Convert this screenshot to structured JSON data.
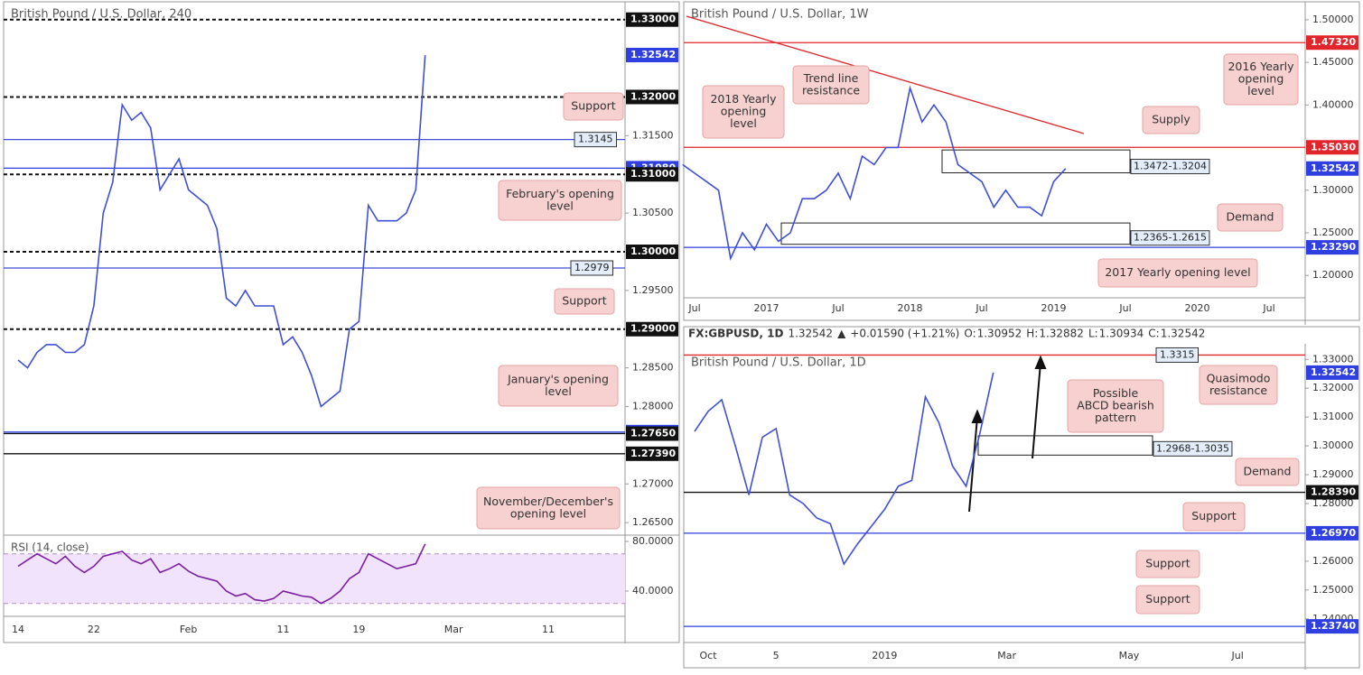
{
  "chart_data": [
    {
      "type": "line",
      "title": "British Pound / U.S. Dollar, 240",
      "categories": [
        "14",
        null,
        null,
        null,
        null,
        null,
        null,
        null,
        "22",
        null,
        null,
        null,
        null,
        null,
        null,
        null,
        null,
        null,
        "Feb",
        null,
        null,
        null,
        null,
        null,
        null,
        null,
        null,
        null,
        "11",
        null,
        null,
        null,
        null,
        null,
        null,
        null,
        "19",
        null,
        null,
        null,
        null,
        null,
        null,
        null,
        null,
        null,
        "Mar",
        null,
        null,
        null,
        null,
        null,
        null,
        null,
        null,
        null,
        "11"
      ],
      "series": [
        {
          "color": "#3f4fd8",
          "values": [
            1.286,
            1.285,
            1.287,
            1.288,
            1.288,
            1.287,
            1.287,
            1.288,
            1.293,
            1.305,
            1.309,
            1.319,
            1.317,
            1.318,
            1.316,
            1.308,
            1.31,
            1.312,
            1.308,
            1.307,
            1.306,
            1.303,
            1.294,
            1.293,
            1.295,
            1.293,
            1.293,
            1.293,
            1.288,
            1.289,
            1.287,
            1.284,
            1.28,
            1.281,
            1.282,
            1.29,
            1.291,
            1.306,
            1.304,
            1.304,
            1.304,
            1.305,
            1.308,
            1.3254,
            null,
            null,
            null,
            null,
            null,
            null,
            null,
            null,
            null,
            null,
            null,
            null,
            null
          ]
        },
        {
          "name": "RSI (14, close)",
          "axis": "y2",
          "color": "#7b1fa2",
          "values": [
            60,
            65,
            70,
            66,
            62,
            68,
            60,
            55,
            60,
            68,
            70,
            72,
            65,
            62,
            66,
            55,
            58,
            62,
            56,
            52,
            50,
            48,
            40,
            36,
            38,
            33,
            32,
            34,
            40,
            38,
            36,
            35,
            30,
            34,
            40,
            50,
            55,
            70,
            66,
            62,
            58,
            60,
            62,
            78,
            null,
            null,
            null,
            null,
            null,
            null,
            null,
            null,
            null,
            null,
            null,
            null,
            null
          ]
        }
      ],
      "ylim": [
        1.2635,
        1.3323
      ],
      "yticks": [
        {
          "value": 1.315,
          "label": "1.31500"
        },
        {
          "value": 1.305,
          "label": "1.30500"
        },
        {
          "value": 1.295,
          "label": "1.29500"
        },
        {
          "value": 1.285,
          "label": "1.28500"
        },
        {
          "value": 1.28,
          "label": "1.28000"
        },
        {
          "value": 1.27,
          "label": "1.27000"
        },
        {
          "value": 1.265,
          "label": "1.26500"
        }
      ],
      "y2lim": [
        19.6,
        85.1
      ],
      "y2ticks": [
        {
          "value": 80,
          "label": "80.0000"
        },
        {
          "value": 40,
          "label": "40.0000"
        }
      ],
      "rsi_bands": [
        30,
        70
      ],
      "levels": [
        {
          "value": 1.33,
          "label": "1.33000",
          "color": "#111111",
          "style": "dashed",
          "label_position": "axis"
        },
        {
          "value": 1.32542,
          "label": "1.32542",
          "color": "#2f3fe0",
          "style": "none",
          "label_position": "axis"
        },
        {
          "value": 1.32,
          "label": "1.32000",
          "color": "#111111",
          "style": "dashed",
          "label_position": "axis"
        },
        {
          "value": 1.3145,
          "label": "1.3145",
          "color": "#3f4fd8",
          "style": "solid",
          "label_position": "inline"
        },
        {
          "value": 1.3108,
          "label": "1.31080",
          "color": "#2f3fe0",
          "style": "solid",
          "label_position": "axis"
        },
        {
          "value": 1.31,
          "label": "1.31000",
          "color": "#111111",
          "style": "dashed",
          "label_position": "axis"
        },
        {
          "value": 1.3,
          "label": "1.30000",
          "color": "#111111",
          "style": "dashed",
          "label_position": "axis"
        },
        {
          "value": 1.2979,
          "label": "1.2979",
          "color": "#3f4fd8",
          "style": "solid",
          "label_position": "inline"
        },
        {
          "value": 1.29,
          "label": "1.29000",
          "color": "#111111",
          "style": "dashed",
          "label_position": "axis"
        },
        {
          "value": 1.2767,
          "label": "1.27670",
          "color": "#2f3fe0",
          "style": "solid",
          "label_position": "axis"
        },
        {
          "value": 1.2765,
          "label": "1.27650",
          "color": "#111111",
          "style": "solid",
          "label_position": "axis"
        },
        {
          "value": 1.2739,
          "label": "1.27390",
          "color": "#111111",
          "style": "solid",
          "label_position": "axis"
        }
      ],
      "callouts": [
        {
          "lines": [
            "Support"
          ]
        },
        {
          "lines": [
            "February's opening",
            "level"
          ]
        },
        {
          "lines": [
            "Support"
          ]
        },
        {
          "lines": [
            "January's opening",
            "level"
          ]
        },
        {
          "lines": [
            "November/December's",
            "opening level"
          ]
        }
      ]
    },
    {
      "type": "line",
      "title": "British Pound / U.S. Dollar, 1W",
      "categories": [
        null,
        "Jul",
        null,
        null,
        null,
        null,
        null,
        "2017",
        null,
        null,
        null,
        null,
        null,
        "Jul",
        null,
        null,
        null,
        null,
        null,
        "2018",
        null,
        null,
        null,
        null,
        null,
        "Jul",
        null,
        null,
        null,
        null,
        null,
        "2019",
        null,
        null,
        null,
        null,
        null,
        "Jul",
        null,
        null,
        null,
        null,
        null,
        "2020",
        null,
        null,
        null,
        null,
        null,
        "Jul"
      ],
      "series": [
        {
          "color": "#3f4fd8",
          "values": [
            1.33,
            1.32,
            1.31,
            1.3,
            1.22,
            1.25,
            1.23,
            1.26,
            1.24,
            1.25,
            1.29,
            1.29,
            1.3,
            1.32,
            1.29,
            1.34,
            1.33,
            1.35,
            1.35,
            1.42,
            1.38,
            1.4,
            1.38,
            1.33,
            1.32,
            1.31,
            1.28,
            1.3,
            1.28,
            1.28,
            1.27,
            1.31,
            1.3254,
            null,
            null,
            null,
            null,
            null,
            null,
            null,
            null,
            null,
            null,
            null,
            null,
            null,
            null,
            null,
            null,
            null
          ]
        }
      ],
      "ylim": [
        1.1737,
        1.5211
      ],
      "yticks": [
        {
          "value": 1.5,
          "label": "1.50000"
        },
        {
          "value": 1.45,
          "label": "1.45000"
        },
        {
          "value": 1.4,
          "label": "1.40000"
        },
        {
          "value": 1.3,
          "label": "1.30000"
        },
        {
          "value": 1.25,
          "label": "1.25000"
        },
        {
          "value": 1.2,
          "label": "1.20000"
        }
      ],
      "levels": [
        {
          "value": 1.4732,
          "label": "1.47320",
          "color": "#e0252b",
          "style": "solid",
          "label_position": "axis"
        },
        {
          "value": 1.3503,
          "label": "1.35030",
          "color": "#e0252b",
          "style": "solid",
          "label_position": "axis"
        },
        {
          "value": 1.32542,
          "label": "1.32542",
          "color": "#2f3fe0",
          "style": "none",
          "label_position": "axis"
        },
        {
          "value": 1.2329,
          "label": "1.23290",
          "color": "#2f3fe0",
          "style": "solid",
          "label_position": "axis"
        }
      ],
      "zones": [
        {
          "low": 1.3204,
          "high": 1.3472,
          "label": "1.3472-1.3204"
        },
        {
          "low": 1.2365,
          "high": 1.2615,
          "label": "1.2365-1.2615"
        }
      ],
      "callouts": [
        {
          "lines": [
            "Trend line",
            "resistance"
          ]
        },
        {
          "lines": [
            "2018 Yearly",
            "opening",
            "level"
          ]
        },
        {
          "lines": [
            "2016 Yearly",
            "opening",
            "level"
          ]
        },
        {
          "lines": [
            "Supply"
          ]
        },
        {
          "lines": [
            "Demand"
          ]
        },
        {
          "lines": [
            "2017 Yearly opening level"
          ]
        }
      ]
    },
    {
      "type": "line",
      "title": "British Pound / U.S. Dollar, 1D",
      "header": {
        "symbol": "FX:GBPUSD, 1D",
        "price": 1.32542,
        "direction": "▲",
        "change": "+0.01590 (+1.21%)",
        "open_label": "O:",
        "open": 1.30952,
        "high_label": "H:",
        "high": 1.32882,
        "low_label": "L:",
        "low": 1.30934,
        "close_label": "C:",
        "close": 1.32542
      },
      "categories": [
        null,
        "Oct",
        null,
        null,
        null,
        null,
        "5",
        null,
        null,
        null,
        null,
        null,
        null,
        null,
        "2019",
        null,
        null,
        null,
        null,
        null,
        null,
        null,
        null,
        "Mar",
        null,
        null,
        null,
        null,
        null,
        null,
        null,
        null,
        "May",
        null,
        null,
        null,
        null,
        null,
        null,
        null,
        "Jul"
      ],
      "series": [
        {
          "color": "#3f4fd8",
          "values": [
            1.305,
            1.312,
            1.316,
            1.3,
            1.283,
            1.303,
            1.306,
            1.283,
            1.28,
            1.275,
            1.273,
            1.259,
            1.266,
            1.272,
            1.278,
            1.286,
            1.288,
            1.317,
            1.308,
            1.293,
            1.286,
            1.304,
            1.3254,
            null,
            null,
            null,
            null,
            null,
            null,
            null,
            null,
            null,
            null,
            null,
            null,
            null,
            null,
            null,
            null,
            null,
            null
          ]
        }
      ],
      "ylim": [
        1.2318,
        1.3354
      ],
      "yticks": [
        {
          "value": 1.33,
          "label": "1.33000"
        },
        {
          "value": 1.32,
          "label": "1.32000"
        },
        {
          "value": 1.31,
          "label": "1.31000"
        },
        {
          "value": 1.3,
          "label": "1.30000"
        },
        {
          "value": 1.29,
          "label": "1.29000"
        },
        {
          "value": 1.28,
          "label": "1.28000"
        },
        {
          "value": 1.26,
          "label": "1.26000"
        },
        {
          "value": 1.25,
          "label": "1.25000"
        },
        {
          "value": 1.24,
          "label": "1.24000"
        }
      ],
      "levels": [
        {
          "value": 1.3315,
          "label": "1.3315",
          "color": "#e0252b",
          "style": "solid",
          "label_position": "inline"
        },
        {
          "value": 1.32542,
          "label": "1.32542",
          "color": "#2f3fe0",
          "style": "none",
          "label_position": "axis"
        },
        {
          "value": 1.2839,
          "label": "1.28390",
          "color": "#111111",
          "style": "solid",
          "label_position": "axis"
        },
        {
          "value": 1.2697,
          "label": "1.26970",
          "color": "#2f3fe0",
          "style": "solid",
          "label_position": "axis"
        },
        {
          "value": 1.2374,
          "label": "1.23740",
          "color": "#2f3fe0",
          "style": "solid",
          "label_position": "axis"
        }
      ],
      "zones": [
        {
          "low": 1.2968,
          "high": 1.3035,
          "label": "1.2968-1.3035"
        }
      ],
      "callouts": [
        {
          "lines": [
            "Quasimodo",
            "resistance"
          ]
        },
        {
          "lines": [
            "Possible",
            "ABCD bearish",
            "pattern"
          ]
        },
        {
          "lines": [
            "Demand"
          ]
        },
        {
          "lines": [
            "Support"
          ]
        },
        {
          "lines": [
            "Support"
          ]
        },
        {
          "lines": [
            "Support"
          ]
        }
      ]
    }
  ]
}
